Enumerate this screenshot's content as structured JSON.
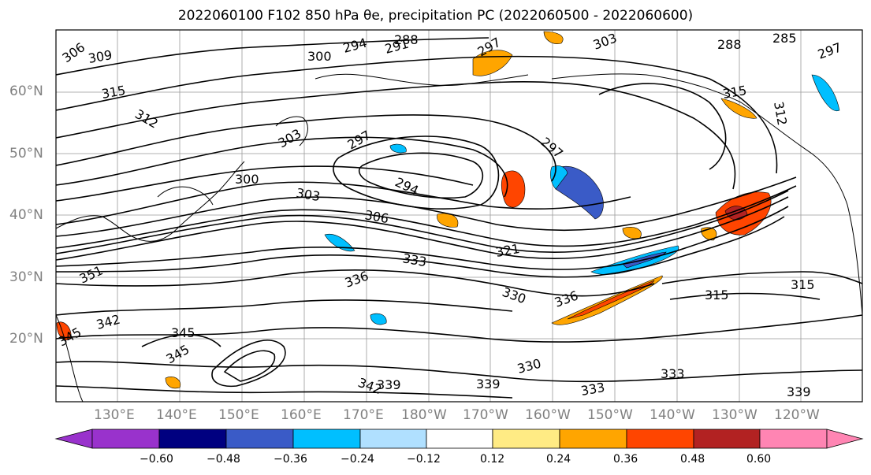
{
  "title": "2022060100 F102 850 hPa θe, precipitation PC (2022060500 - 2022060600)",
  "lat_labels": [
    "20°N",
    "30°N",
    "40°N",
    "50°N",
    "60°N"
  ],
  "lon_labels": [
    "130°E",
    "140°E",
    "150°E",
    "160°E",
    "170°E",
    "180°W",
    "170°W",
    "160°W",
    "150°W",
    "140°W",
    "130°W",
    "120°W"
  ],
  "colorbar": {
    "ticks": [
      "−0.60",
      "−0.48",
      "−0.36",
      "−0.24",
      "−0.12",
      "0.12",
      "0.24",
      "0.36",
      "0.48",
      "0.60"
    ],
    "colors": [
      "#9932cc",
      "#000080",
      "#3a5bc7",
      "#00bfff",
      "#b0e0ff",
      "#ffffff",
      "#ffeb84",
      "#ffa500",
      "#ff4500",
      "#b22222",
      "#ff85b3"
    ]
  },
  "contour_labels": [
    {
      "text": "306"
    },
    {
      "text": "309"
    },
    {
      "text": "300"
    },
    {
      "text": "294"
    },
    {
      "text": "291"
    },
    {
      "text": "288"
    },
    {
      "text": "297"
    },
    {
      "text": "303"
    },
    {
      "text": "288"
    },
    {
      "text": "285"
    },
    {
      "text": "297"
    },
    {
      "text": "315"
    },
    {
      "text": "312"
    },
    {
      "text": "315"
    },
    {
      "text": "312"
    },
    {
      "text": "303"
    },
    {
      "text": "297"
    },
    {
      "text": "297"
    },
    {
      "text": "294"
    },
    {
      "text": "300"
    },
    {
      "text": "303"
    },
    {
      "text": "306"
    },
    {
      "text": "333"
    },
    {
      "text": "321"
    },
    {
      "text": "336"
    },
    {
      "text": "330"
    },
    {
      "text": "336"
    },
    {
      "text": "315"
    },
    {
      "text": "315"
    },
    {
      "text": "351"
    },
    {
      "text": "342"
    },
    {
      "text": "345"
    },
    {
      "text": "345"
    },
    {
      "text": "345"
    },
    {
      "text": "342"
    },
    {
      "text": "339"
    },
    {
      "text": "339"
    },
    {
      "text": "330"
    },
    {
      "text": "333"
    },
    {
      "text": "333"
    },
    {
      "text": "339"
    }
  ]
}
